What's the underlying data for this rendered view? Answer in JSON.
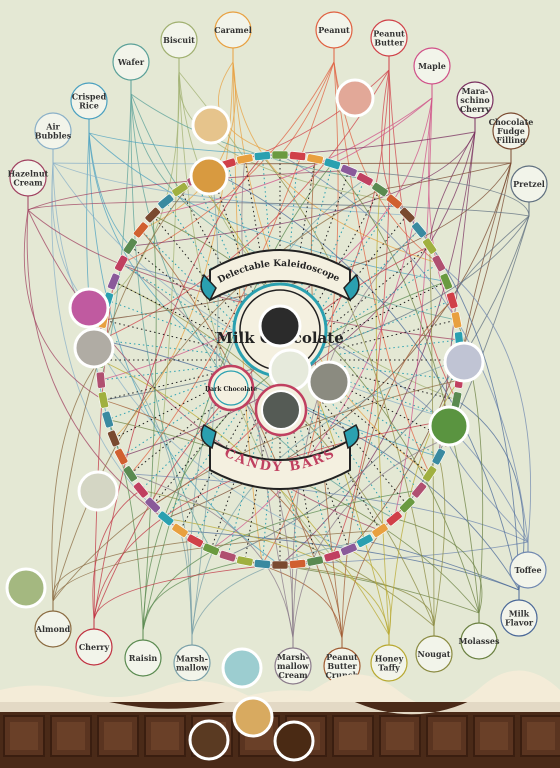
{
  "title": {
    "line1": "A Delectable Kaleidoscope of",
    "center1": "Milk Chocolate",
    "center2": "Dark Chocolate",
    "line2": "CANDY BARS"
  },
  "ingredients": [
    {
      "label": "Caramel",
      "color": "#e8a040"
    },
    {
      "label": "Biscuit",
      "color": "#a0b070"
    },
    {
      "label": "Wafer",
      "color": "#5aa098"
    },
    {
      "label": "Crisped Rice",
      "color": "#4aa0c0"
    },
    {
      "label": "Air Bubbles",
      "color": "#8ab0c8"
    },
    {
      "label": "Hazelnut Cream",
      "color": "#a04060"
    },
    {
      "label": "Peanut",
      "color": "#e06040"
    },
    {
      "label": "Peanut Butter",
      "color": "#d04048"
    },
    {
      "label": "Maple",
      "color": "#d05088"
    },
    {
      "label": "Maraschino Cherry",
      "color": "#7a3060"
    },
    {
      "label": "Chocolate Fudge Filling",
      "color": "#7a4a30"
    },
    {
      "label": "Pretzel",
      "color": "#607080"
    },
    {
      "label": "Toffee",
      "color": "#7088b0"
    },
    {
      "label": "Milk Flavor",
      "color": "#4a6898"
    },
    {
      "label": "Molasses",
      "color": "#6a8040"
    },
    {
      "label": "Nougat",
      "color": "#8a8a40"
    },
    {
      "label": "Honey Taffy",
      "color": "#b8a830"
    },
    {
      "label": "Peanut Butter Crunch",
      "color": "#a05a30"
    },
    {
      "label": "Marshmallow Cream",
      "color": "#8a7a8a"
    },
    {
      "label": "Marshmallow",
      "color": "#7aa0a8"
    },
    {
      "label": "Raisin",
      "color": "#5a8a50"
    },
    {
      "label": "Cherry",
      "color": "#c03040"
    },
    {
      "label": "Almond",
      "color": "#8a6a40"
    }
  ],
  "palette": {
    "background": "#e4e8d4",
    "chocolate": "#4a2a18",
    "teal": "#2aa0b0",
    "pink": "#c04060"
  }
}
